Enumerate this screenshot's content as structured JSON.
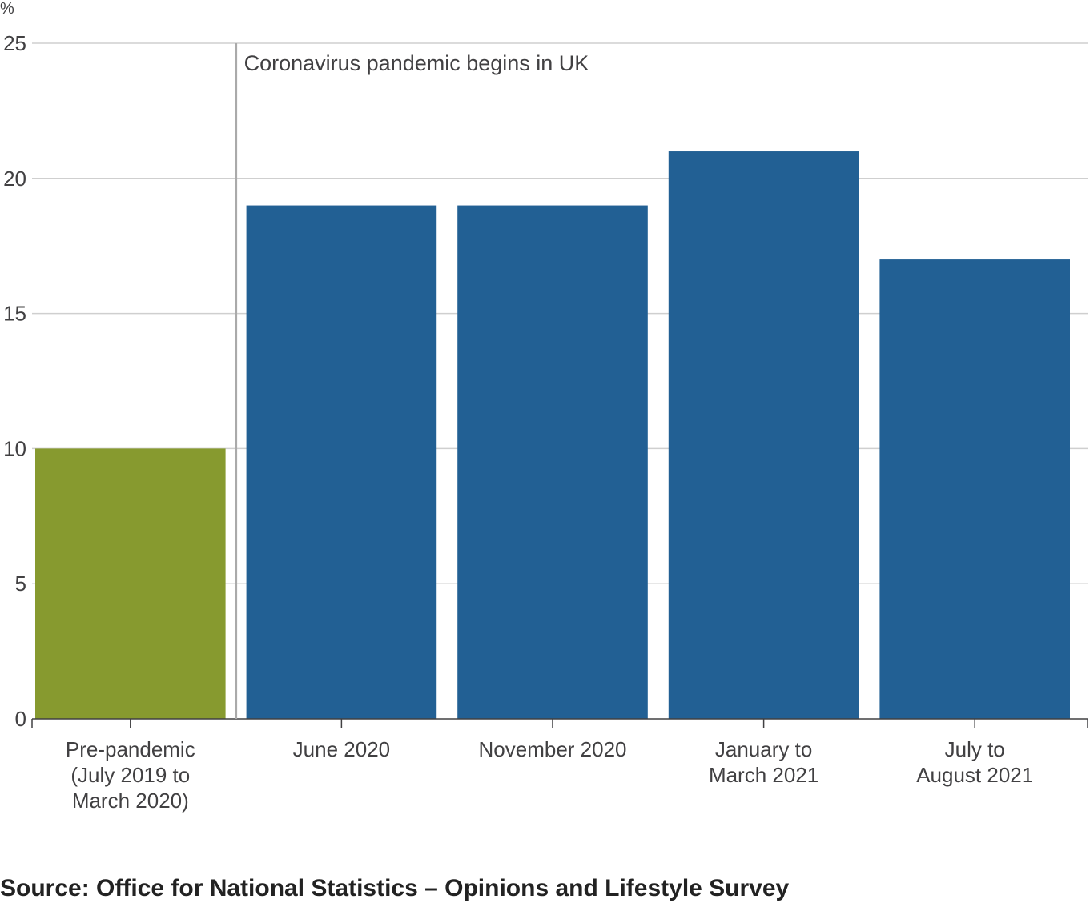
{
  "chart_data": {
    "type": "bar",
    "unit_label": "%",
    "categories": [
      [
        "Pre-pandemic",
        "(July 2019 to",
        "March 2020)"
      ],
      [
        "June 2020"
      ],
      [
        "November 2020"
      ],
      [
        "January to",
        "March 2021"
      ],
      [
        "July to",
        "August 2021"
      ]
    ],
    "values": [
      10,
      19,
      19,
      21,
      17
    ],
    "bar_colors": [
      "#879a2f",
      "#226094",
      "#226094",
      "#226094",
      "#226094"
    ],
    "ylim": [
      0,
      25
    ],
    "yticks": [
      0,
      5,
      10,
      15,
      20,
      25
    ],
    "grid": true,
    "annotation": {
      "text": "Coronavirus pandemic begins in UK",
      "between_categories": [
        0,
        1
      ]
    }
  },
  "source": "Source: Office for National Statistics – Opinions and Lifestyle Survey",
  "colors": {
    "grid": "#cfcfcf",
    "axis": "#414042",
    "annotation_line": "#aaaaaa",
    "text": "#414042"
  }
}
